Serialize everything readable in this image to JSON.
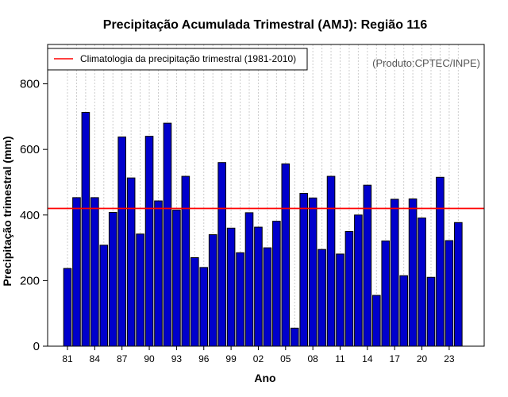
{
  "chart_data": {
    "type": "bar",
    "title": "Precipitação Acumulada Trimestral (AMJ): Região 116",
    "xlabel": "Ano",
    "ylabel": "Precipitação trimestral (mm)",
    "ylim": [
      0,
      920
    ],
    "yticks": [
      0,
      200,
      400,
      600,
      800
    ],
    "grid": "vertical dotted",
    "legend_position": "top-left",
    "credit": "(Produto:CPTEC/INPE)",
    "colors": {
      "bar_fill": "#0000cc",
      "bar_stroke": "#000000",
      "climatology_line": "#ff0000",
      "grid": "#cccccc"
    },
    "categories": [
      "1981",
      "1982",
      "1983",
      "1984",
      "1985",
      "1986",
      "1987",
      "1988",
      "1989",
      "1990",
      "1991",
      "1992",
      "1993",
      "1994",
      "1995",
      "1996",
      "1997",
      "1998",
      "1999",
      "2000",
      "2001",
      "2002",
      "2003",
      "2004",
      "2005",
      "2006",
      "2007",
      "2008",
      "2009",
      "2010",
      "2011",
      "2012",
      "2013",
      "2014",
      "2015",
      "2016",
      "2017",
      "2018",
      "2019",
      "2020",
      "2021",
      "2022",
      "2023",
      "2024"
    ],
    "xtick_labels": [
      {
        "index": 0,
        "label": "81"
      },
      {
        "index": 3,
        "label": "84"
      },
      {
        "index": 6,
        "label": "87"
      },
      {
        "index": 9,
        "label": "90"
      },
      {
        "index": 12,
        "label": "93"
      },
      {
        "index": 15,
        "label": "96"
      },
      {
        "index": 18,
        "label": "99"
      },
      {
        "index": 21,
        "label": "02"
      },
      {
        "index": 24,
        "label": "05"
      },
      {
        "index": 27,
        "label": "08"
      },
      {
        "index": 30,
        "label": "11"
      },
      {
        "index": 33,
        "label": "14"
      },
      {
        "index": 36,
        "label": "17"
      },
      {
        "index": 39,
        "label": "20"
      },
      {
        "index": 42,
        "label": "23"
      }
    ],
    "series": [
      {
        "name": "Precipitação trimestral",
        "values": [
          237,
          453,
          713,
          453,
          308,
          408,
          638,
          513,
          342,
          640,
          443,
          680,
          415,
          518,
          270,
          240,
          340,
          560,
          360,
          285,
          407,
          363,
          300,
          381,
          556,
          55,
          466,
          452,
          295,
          518,
          281,
          350,
          400,
          491,
          155,
          321,
          448,
          215,
          449,
          391,
          210,
          515,
          322,
          377
        ]
      }
    ],
    "reference_lines": [
      {
        "name": "Climatologia da precipitação trimestral (1981-2010)",
        "value": 420
      }
    ]
  }
}
